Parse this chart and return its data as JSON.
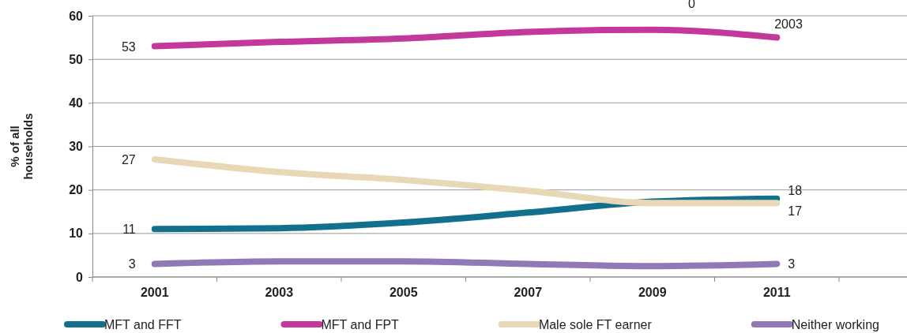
{
  "chart_data": {
    "type": "line",
    "ylabel": "% of all households",
    "categories": [
      "2001",
      "2003",
      "2005",
      "2007",
      "2009",
      "2011"
    ],
    "ylim": [
      0,
      60
    ],
    "yticks": [
      0,
      10,
      20,
      30,
      40,
      50,
      60
    ],
    "grid": "y",
    "legend": "bottom",
    "marker": "none",
    "line_style": "solid",
    "series": [
      {
        "name": "MFT and FFT",
        "color": "#12708c",
        "values": [
          11,
          11.2,
          12.5,
          14.8,
          17.3,
          18
        ],
        "value_labels": [
          "11",
          null,
          null,
          null,
          null,
          "18"
        ]
      },
      {
        "name": "MFT and FPT",
        "color": "#c2399a",
        "values": [
          53,
          54,
          54.8,
          56.3,
          56.8,
          55
        ],
        "value_labels": [
          "53",
          null,
          null,
          null,
          null,
          null
        ]
      },
      {
        "name": "Male sole FT earner",
        "color": "#e8d8b6",
        "values": [
          27,
          24.1,
          22.3,
          19.8,
          17,
          17
        ],
        "value_labels": [
          "27",
          null,
          null,
          null,
          null,
          "17"
        ]
      },
      {
        "name": "Neither working",
        "color": "#9179b5",
        "values": [
          3,
          3.6,
          3.6,
          3,
          2.5,
          3
        ],
        "value_labels": [
          "3",
          null,
          null,
          null,
          null,
          "3"
        ]
      }
    ],
    "annotations": [
      "0",
      "2003"
    ]
  }
}
